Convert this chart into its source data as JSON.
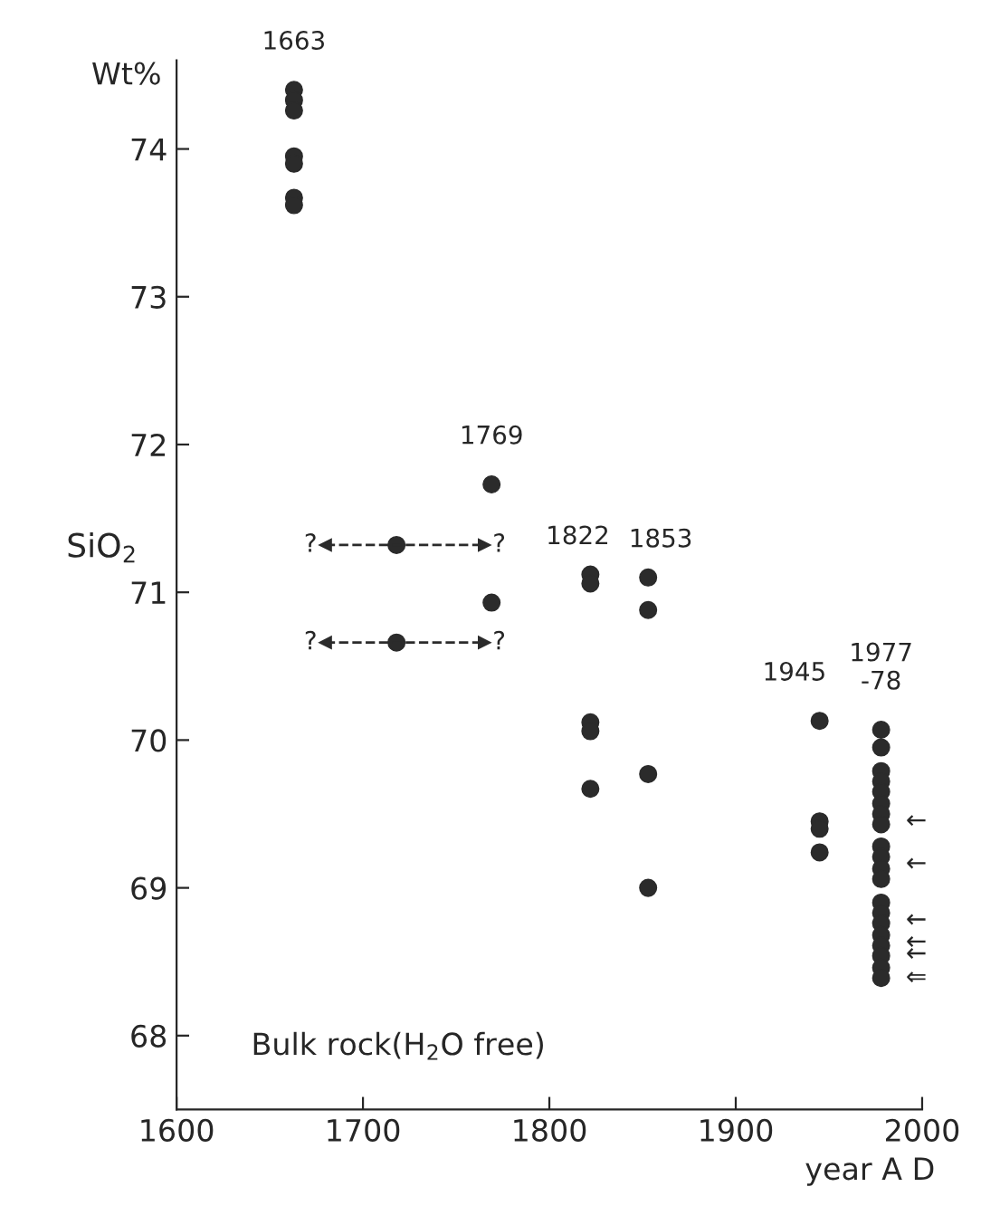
{
  "chart_data": {
    "type": "scatter",
    "xlabel": "year A D",
    "ylabel": "SiO$_{2}$",
    "xlim": [
      1600,
      2000
    ],
    "xticks": [
      1600,
      1700,
      1800,
      1900,
      2000
    ],
    "ylim": [
      67.5,
      74.6
    ],
    "yticks": [
      68,
      69,
      70,
      71,
      72,
      73,
      74
    ],
    "grid": false,
    "legend": false,
    "marker": "circle",
    "series": [
      {
        "color": "#2b2b2b",
        "x": [
          1663,
          1663,
          1663,
          1663,
          1663,
          1663,
          1663,
          1769,
          1769,
          1822,
          1822,
          1822,
          1822,
          1822,
          1853,
          1853,
          1853,
          1853,
          1945,
          1945,
          1945,
          1945,
          1978,
          1978,
          1978,
          1978,
          1978,
          1978,
          1978,
          1978,
          1978,
          1978,
          1978,
          1978,
          1978,
          1978,
          1978,
          1978,
          1978,
          1978,
          1978,
          1978
        ],
        "values": [
          74.4,
          74.33,
          74.26,
          73.95,
          73.9,
          73.67,
          73.62,
          71.73,
          70.93,
          71.12,
          71.06,
          70.12,
          70.06,
          69.67,
          71.1,
          70.88,
          69.77,
          69.0,
          70.13,
          69.45,
          69.4,
          69.24,
          70.07,
          69.95,
          69.79,
          69.72,
          69.65,
          69.57,
          69.5,
          69.43,
          69.28,
          69.21,
          69.13,
          69.06,
          68.9,
          68.83,
          68.76,
          68.68,
          68.61,
          68.54,
          68.46,
          68.39
        ]
      },
      {
        "color": "#2b2b2b",
        "x": [
          1718,
          1718
        ],
        "values": [
          71.32,
          70.66
        ],
        "xerrors": [
          [
            1680,
            1765
          ],
          [
            1680,
            1765
          ]
        ],
        "line_style": "dashed"
      }
    ],
    "annotations": [
      {
        "text": "1663",
        "x": 1663,
        "y": 74.4
      },
      {
        "text": "1769",
        "x": 1769,
        "y": 71.73
      },
      {
        "text": "1822",
        "x": 1822,
        "y": 71.12
      },
      {
        "text": "1853",
        "x": 1853,
        "y": 71.1
      },
      {
        "text": "1945",
        "x": 1945,
        "y": 70.13
      },
      {
        "text": "1977\n-78",
        "x": 1978,
        "y": 70.07
      },
      {
        "text": "←",
        "x": 1978,
        "y": 69.45
      },
      {
        "text": "←",
        "x": 1978,
        "y": 69.16
      },
      {
        "text": "←",
        "x": 1978,
        "y": 68.78
      },
      {
        "text": "←",
        "x": 1978,
        "y": 68.63
      },
      {
        "text": "←",
        "x": 1978,
        "y": 68.55
      },
      {
        "text": "⇐",
        "x": 1978,
        "y": 68.39
      },
      "Wt%",
      "Bulk rock(H$_{2}$O free)",
      "?",
      "?",
      "?",
      "?"
    ]
  }
}
